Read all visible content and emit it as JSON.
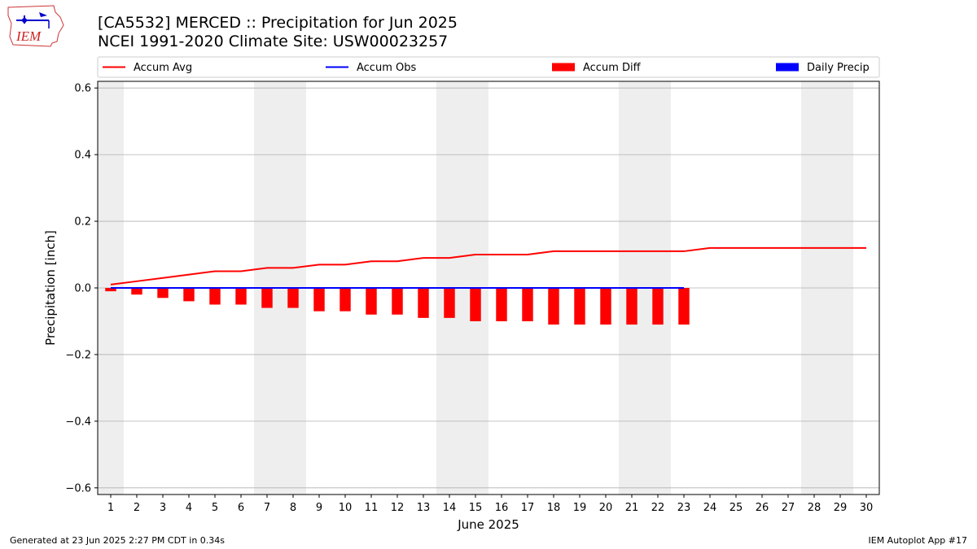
{
  "header": {
    "title_line1": "[CA5532] MERCED :: Precipitation for Jun 2025",
    "title_line2": "NCEI 1991-2020 Climate Site: USW00023257",
    "logo_text": "IEM"
  },
  "footer": {
    "generated": "Generated at 23 Jun 2025 2:27 PM CDT in 0.34s",
    "app": "IEM Autoplot App #17"
  },
  "colors": {
    "accum_avg": "#ff0000",
    "accum_obs": "#0000ff",
    "accum_diff": "#ff0000",
    "daily_precip": "#0000ff",
    "weekend_shade": "#eeeeee",
    "grid": "#b0b0b0"
  },
  "chart_data": {
    "type": "bar",
    "xlabel": "June 2025",
    "ylabel": "Precipitation [inch]",
    "ylim": [
      -0.62,
      0.62
    ],
    "yticks": [
      -0.6,
      -0.4,
      -0.2,
      0.0,
      0.2,
      0.4,
      0.6
    ],
    "ytick_labels": [
      "−0.6",
      "−0.4",
      "−0.2",
      "0.0",
      "0.2",
      "0.4",
      "0.6"
    ],
    "days": [
      1,
      2,
      3,
      4,
      5,
      6,
      7,
      8,
      9,
      10,
      11,
      12,
      13,
      14,
      15,
      16,
      17,
      18,
      19,
      20,
      21,
      22,
      23,
      24,
      25,
      26,
      27,
      28,
      29,
      30
    ],
    "weekend_shading": [
      [
        1,
        1
      ],
      [
        7,
        8
      ],
      [
        14,
        15
      ],
      [
        21,
        22
      ],
      [
        28,
        29
      ]
    ],
    "grid": "horizontal",
    "legend": {
      "position": "top",
      "entries": [
        "Accum Avg",
        "Accum Obs",
        "Accum Diff",
        "Daily Precip"
      ]
    },
    "series": [
      {
        "name": "Accum Avg",
        "kind": "line",
        "x": [
          1,
          2,
          3,
          4,
          5,
          6,
          7,
          8,
          9,
          10,
          11,
          12,
          13,
          14,
          15,
          16,
          17,
          18,
          19,
          20,
          21,
          22,
          23,
          24,
          25,
          26,
          27,
          28,
          29,
          30
        ],
        "values": [
          0.01,
          0.02,
          0.03,
          0.04,
          0.05,
          0.05,
          0.06,
          0.06,
          0.07,
          0.07,
          0.08,
          0.08,
          0.09,
          0.09,
          0.1,
          0.1,
          0.1,
          0.11,
          0.11,
          0.11,
          0.11,
          0.11,
          0.11,
          0.12,
          0.12,
          0.12,
          0.12,
          0.12,
          0.12,
          0.12
        ]
      },
      {
        "name": "Accum Obs",
        "kind": "line",
        "x": [
          1,
          2,
          3,
          4,
          5,
          6,
          7,
          8,
          9,
          10,
          11,
          12,
          13,
          14,
          15,
          16,
          17,
          18,
          19,
          20,
          21,
          22,
          23
        ],
        "values": [
          0,
          0,
          0,
          0,
          0,
          0,
          0,
          0,
          0,
          0,
          0,
          0,
          0,
          0,
          0,
          0,
          0,
          0,
          0,
          0,
          0,
          0,
          0
        ]
      },
      {
        "name": "Accum Diff",
        "kind": "bar",
        "x": [
          1,
          2,
          3,
          4,
          5,
          6,
          7,
          8,
          9,
          10,
          11,
          12,
          13,
          14,
          15,
          16,
          17,
          18,
          19,
          20,
          21,
          22,
          23
        ],
        "values": [
          -0.01,
          -0.02,
          -0.03,
          -0.04,
          -0.05,
          -0.05,
          -0.06,
          -0.06,
          -0.07,
          -0.07,
          -0.08,
          -0.08,
          -0.09,
          -0.09,
          -0.1,
          -0.1,
          -0.1,
          -0.11,
          -0.11,
          -0.11,
          -0.11,
          -0.11,
          -0.11
        ]
      },
      {
        "name": "Daily Precip",
        "kind": "bar",
        "x": [],
        "values": []
      }
    ]
  }
}
